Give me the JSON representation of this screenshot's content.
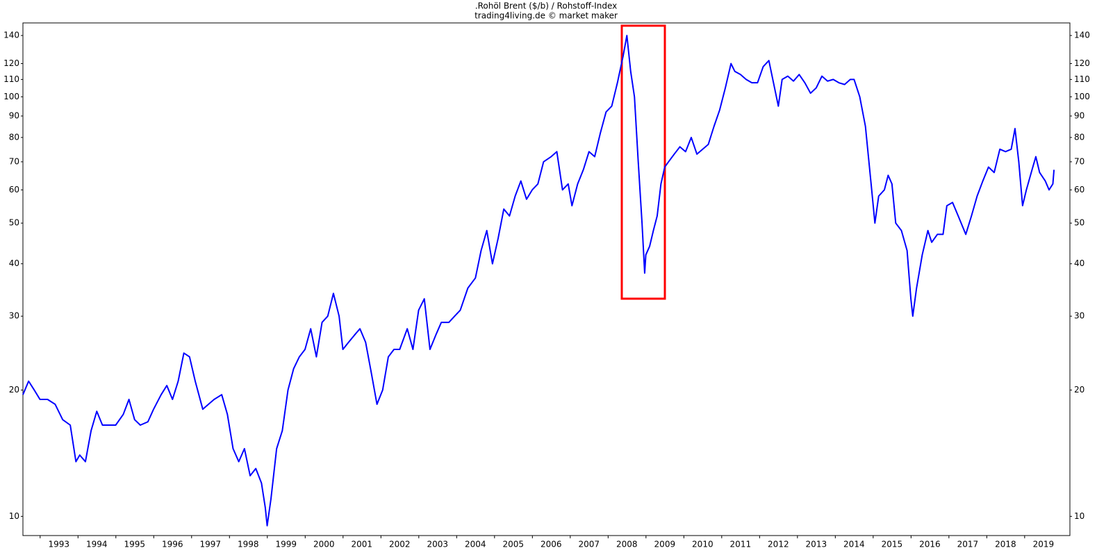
{
  "chart_data": {
    "type": "line",
    "title": ".Rohöl Brent ($/b) / Rohstoff-Index",
    "subtitle": "trading4living.de © market maker",
    "color": "#0000ff",
    "log_scale": true,
    "ylim": [
      9,
      150
    ],
    "yticks": [
      10,
      20,
      30,
      40,
      50,
      60,
      70,
      80,
      90,
      100,
      110,
      120,
      140
    ],
    "xlim": [
      1992.55,
      2020.2
    ],
    "xticks": [
      {
        "value": 1993.5,
        "label": "1993"
      },
      {
        "value": 1994.5,
        "label": "1994"
      },
      {
        "value": 1995.5,
        "label": "1995"
      },
      {
        "value": 1996.5,
        "label": "1996"
      },
      {
        "value": 1997.5,
        "label": "1997"
      },
      {
        "value": 1998.5,
        "label": "1998"
      },
      {
        "value": 1999.5,
        "label": "1999"
      },
      {
        "value": 2000.5,
        "label": "2000"
      },
      {
        "value": 2001.5,
        "label": "2001"
      },
      {
        "value": 2002.5,
        "label": "2002"
      },
      {
        "value": 2003.5,
        "label": "2003"
      },
      {
        "value": 2004.5,
        "label": "2004"
      },
      {
        "value": 2005.5,
        "label": "2005"
      },
      {
        "value": 2006.5,
        "label": "2006"
      },
      {
        "value": 2007.5,
        "label": "2007"
      },
      {
        "value": 2008.5,
        "label": "2008"
      },
      {
        "value": 2009.5,
        "label": "2009"
      },
      {
        "value": 2010.5,
        "label": "2010"
      },
      {
        "value": 2011.5,
        "label": "2011"
      },
      {
        "value": 2012.5,
        "label": "2012"
      },
      {
        "value": 2013.5,
        "label": "2013"
      },
      {
        "value": 2014.5,
        "label": "2014"
      },
      {
        "value": 2015.5,
        "label": "2015"
      },
      {
        "value": 2016.5,
        "label": "2016"
      },
      {
        "value": 2017.5,
        "label": "2017"
      },
      {
        "value": 2018.5,
        "label": "2018"
      },
      {
        "value": 2019.5,
        "label": "2019"
      }
    ],
    "x": [
      1992.55,
      1992.7,
      1992.85,
      1993.0,
      1993.2,
      1993.4,
      1993.6,
      1993.8,
      1993.95,
      1994.05,
      1994.2,
      1994.35,
      1994.5,
      1994.65,
      1994.8,
      1995.0,
      1995.2,
      1995.35,
      1995.5,
      1995.65,
      1995.85,
      1996.0,
      1996.2,
      1996.35,
      1996.5,
      1996.65,
      1996.8,
      1996.95,
      1997.1,
      1997.3,
      1997.45,
      1997.6,
      1997.8,
      1997.95,
      1998.1,
      1998.25,
      1998.4,
      1998.55,
      1998.7,
      1998.85,
      1998.95,
      1999.0,
      1999.1,
      1999.25,
      1999.4,
      1999.55,
      1999.7,
      1999.85,
      2000.0,
      2000.15,
      2000.3,
      2000.45,
      2000.6,
      2000.75,
      2000.9,
      2001.0,
      2001.15,
      2001.3,
      2001.45,
      2001.6,
      2001.75,
      2001.9,
      2002.05,
      2002.2,
      2002.35,
      2002.5,
      2002.7,
      2002.85,
      2003.0,
      2003.15,
      2003.3,
      2003.45,
      2003.6,
      2003.8,
      2003.95,
      2004.1,
      2004.3,
      2004.5,
      2004.65,
      2004.8,
      2004.95,
      2005.1,
      2005.25,
      2005.4,
      2005.55,
      2005.7,
      2005.85,
      2006.0,
      2006.15,
      2006.3,
      2006.5,
      2006.65,
      2006.8,
      2006.95,
      2007.05,
      2007.2,
      2007.35,
      2007.5,
      2007.65,
      2007.8,
      2007.95,
      2008.1,
      2008.25,
      2008.4,
      2008.5,
      2008.6,
      2008.7,
      2008.8,
      2008.9,
      2008.97,
      2009.0,
      2009.1,
      2009.2,
      2009.3,
      2009.4,
      2009.5,
      2009.6,
      2009.75,
      2009.9,
      2010.05,
      2010.2,
      2010.35,
      2010.5,
      2010.65,
      2010.8,
      2010.95,
      2011.1,
      2011.25,
      2011.35,
      2011.5,
      2011.65,
      2011.8,
      2011.95,
      2012.1,
      2012.25,
      2012.4,
      2012.5,
      2012.6,
      2012.75,
      2012.9,
      2013.05,
      2013.2,
      2013.35,
      2013.5,
      2013.65,
      2013.8,
      2013.95,
      2014.1,
      2014.25,
      2014.4,
      2014.5,
      2014.65,
      2014.8,
      2014.95,
      2015.05,
      2015.15,
      2015.3,
      2015.4,
      2015.5,
      2015.6,
      2015.75,
      2015.9,
      2016.0,
      2016.05,
      2016.15,
      2016.3,
      2016.45,
      2016.55,
      2016.7,
      2016.85,
      2016.95,
      2017.1,
      2017.25,
      2017.45,
      2017.6,
      2017.75,
      2017.9,
      2018.05,
      2018.2,
      2018.35,
      2018.5,
      2018.65,
      2018.75,
      2018.85,
      2018.95,
      2019.05,
      2019.2,
      2019.3,
      2019.4,
      2019.55,
      2019.65,
      2019.75,
      2019.78
    ],
    "values": [
      19.5,
      21,
      20,
      19,
      19,
      18.5,
      17,
      16.5,
      13.5,
      14,
      13.5,
      16,
      17.8,
      16.5,
      16.5,
      16.5,
      17.5,
      19,
      17,
      16.5,
      16.8,
      18,
      19.5,
      20.5,
      19,
      21,
      24.5,
      24,
      21,
      18,
      18.5,
      19,
      19.5,
      17.5,
      14.5,
      13.5,
      14.5,
      12.5,
      13,
      12,
      10.5,
      9.5,
      11,
      14.5,
      16,
      20,
      22.5,
      24,
      25,
      28,
      24,
      29,
      30,
      34,
      30,
      25,
      26,
      27,
      28,
      26,
      22,
      18.5,
      20,
      24,
      25,
      25,
      28,
      25,
      31,
      33,
      25,
      27,
      29,
      29,
      30,
      31,
      35,
      37,
      43,
      48,
      40,
      46,
      54,
      52,
      58,
      63,
      57,
      60,
      62,
      70,
      72,
      74,
      60,
      62,
      55,
      62,
      67,
      74,
      72,
      82,
      92,
      95,
      108,
      125,
      140,
      115,
      100,
      70,
      50,
      38,
      42,
      44,
      48,
      52,
      62,
      68,
      70,
      73,
      76,
      74,
      80,
      73,
      75,
      77,
      85,
      93,
      105,
      120,
      115,
      113,
      110,
      108,
      108,
      118,
      122,
      105,
      95,
      110,
      112,
      109,
      113,
      108,
      102,
      105,
      112,
      109,
      110,
      108,
      107,
      110,
      110,
      100,
      85,
      62,
      50,
      58,
      60,
      65,
      62,
      50,
      48,
      43,
      33,
      30,
      35,
      42,
      48,
      45,
      47,
      47,
      55,
      56,
      52,
      47,
      52,
      58,
      63,
      68,
      66,
      75,
      74,
      75,
      84,
      70,
      55,
      60,
      67,
      72,
      66,
      63,
      60,
      62,
      67
    ]
  }
}
